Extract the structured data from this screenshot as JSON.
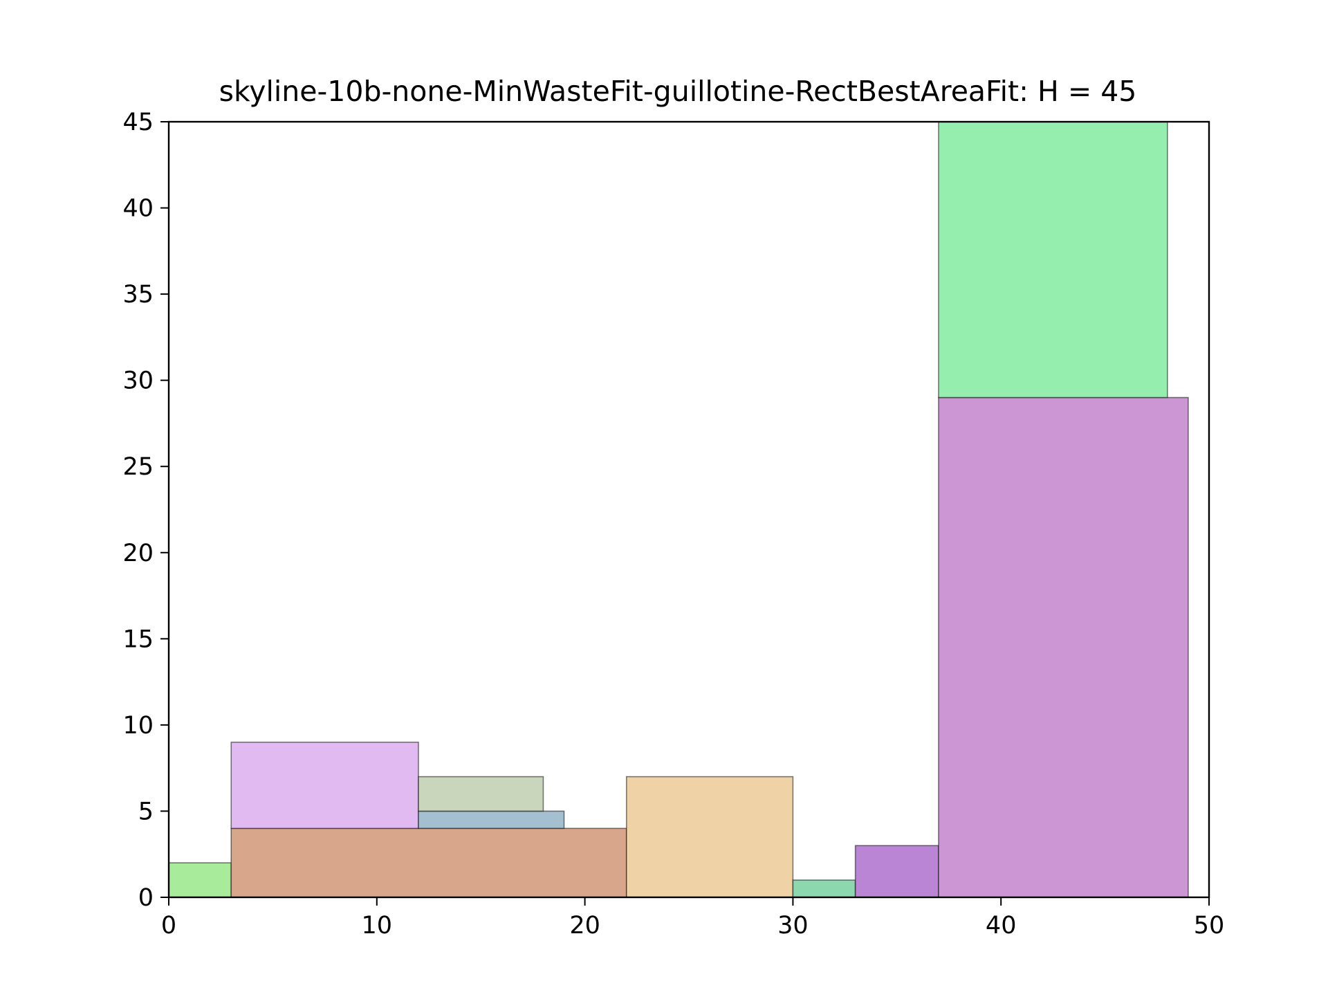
{
  "chart_data": {
    "type": "rectangle-packing",
    "title": "skyline-10b-none-MinWasteFit-guillotine-RectBestAreaFit: H = 45",
    "xlabel": "",
    "ylabel": "",
    "xlim": [
      0,
      50
    ],
    "ylim": [
      0,
      45
    ],
    "xticks": [
      0,
      10,
      20,
      30,
      40,
      50
    ],
    "yticks": [
      0,
      5,
      10,
      15,
      20,
      25,
      30,
      35,
      40,
      45
    ],
    "grid": false,
    "rectangles": [
      {
        "x": 0,
        "y": 0,
        "w": 3,
        "h": 2,
        "color": "#a8eb9a"
      },
      {
        "x": 3,
        "y": 0,
        "w": 19,
        "h": 4,
        "color": "#d8a68b"
      },
      {
        "x": 3,
        "y": 4,
        "w": 9,
        "h": 5,
        "color": "#e1baf2"
      },
      {
        "x": 12,
        "y": 4,
        "w": 7,
        "h": 1,
        "color": "#a4bfcf"
      },
      {
        "x": 12,
        "y": 5,
        "w": 6,
        "h": 2,
        "color": "#c9d6bc"
      },
      {
        "x": 22,
        "y": 0,
        "w": 8,
        "h": 7,
        "color": "#efd3a6"
      },
      {
        "x": 30,
        "y": 0,
        "w": 3,
        "h": 1,
        "color": "#8dd7ae"
      },
      {
        "x": 33,
        "y": 0,
        "w": 4,
        "h": 3,
        "color": "#ba85d4"
      },
      {
        "x": 37,
        "y": 0,
        "w": 12,
        "h": 29,
        "color": "#cc95d4"
      },
      {
        "x": 37,
        "y": 29,
        "w": 11,
        "h": 16,
        "color": "#96eeae"
      }
    ]
  }
}
